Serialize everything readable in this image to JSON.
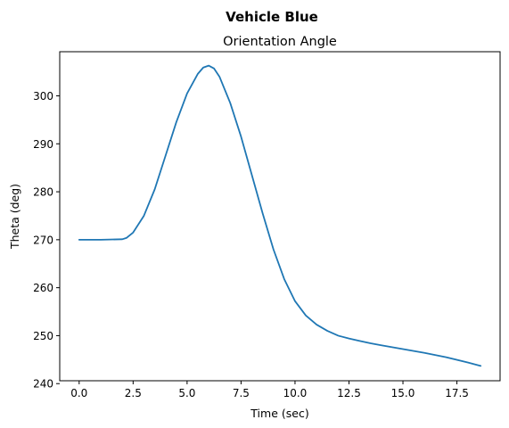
{
  "figure": {
    "suptitle": "Vehicle Blue"
  },
  "chart_data": {
    "type": "line",
    "title": "Orientation Angle",
    "xlabel": "Time (sec)",
    "ylabel": "Theta (deg)",
    "xlim": [
      -0.9,
      19.5
    ],
    "ylim": [
      240.6,
      309.2
    ],
    "xticks": [
      0,
      2.5,
      5,
      7.5,
      10,
      12.5,
      15,
      17.5
    ],
    "xtick_labels": [
      "0.0",
      "2.5",
      "5.0",
      "7.5",
      "10.0",
      "12.5",
      "15.0",
      "17.5"
    ],
    "yticks": [
      240,
      250,
      260,
      270,
      280,
      290,
      300
    ],
    "ytick_labels": [
      "240",
      "250",
      "260",
      "270",
      "280",
      "290",
      "300"
    ],
    "grid": false,
    "legend": "none",
    "colors": {
      "line": "#1f77b4"
    },
    "series": [
      {
        "x": [
          0,
          1,
          2,
          2.2,
          2.5,
          3,
          3.5,
          4,
          4.5,
          5,
          5.5,
          5.75,
          6,
          6.25,
          6.5,
          7,
          7.5,
          8,
          8.5,
          9,
          9.5,
          10,
          10.5,
          11,
          11.5,
          12,
          12.5,
          13,
          13.5,
          14,
          15,
          16,
          17,
          18,
          18.6
        ],
        "y": [
          270,
          270,
          270.1,
          270.4,
          271.5,
          275,
          280.5,
          287.5,
          294.5,
          300.5,
          304.6,
          305.9,
          306.3,
          305.7,
          304,
          298.5,
          291.5,
          283.5,
          275.5,
          268,
          261.8,
          257.2,
          254.2,
          252.3,
          251,
          250,
          249.4,
          248.9,
          248.4,
          248,
          247.2,
          246.4,
          245.5,
          244.4,
          243.7
        ]
      }
    ]
  }
}
